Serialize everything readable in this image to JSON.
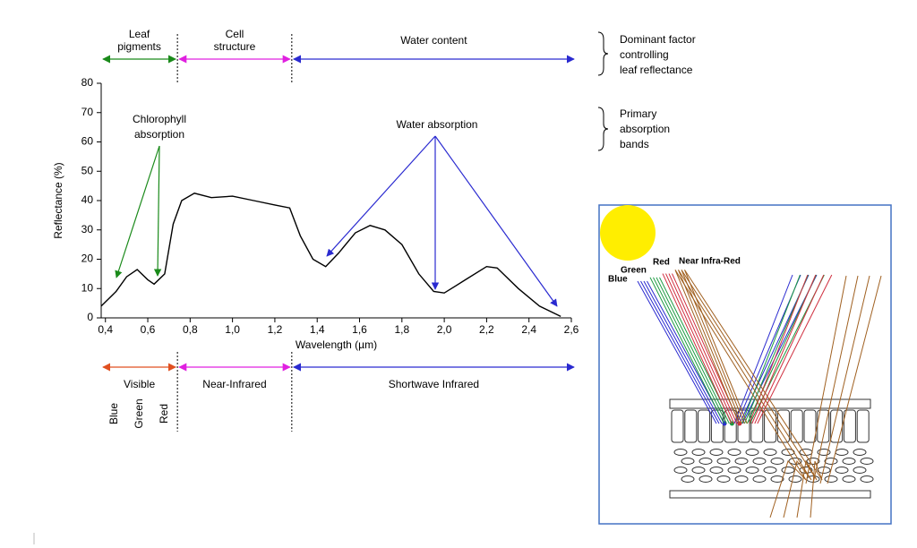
{
  "chart_data": {
    "type": "line",
    "ylabel": "Reflectance (%)",
    "xlabel": "Wavelength (µm)",
    "x": [
      0.38,
      0.45,
      0.5,
      0.55,
      0.6,
      0.63,
      0.68,
      0.72,
      0.76,
      0.82,
      0.9,
      1.0,
      1.1,
      1.2,
      1.27,
      1.32,
      1.38,
      1.44,
      1.5,
      1.58,
      1.65,
      1.72,
      1.8,
      1.88,
      1.95,
      2.0,
      2.1,
      2.2,
      2.25,
      2.35,
      2.45,
      2.55
    ],
    "values": [
      4,
      9,
      14,
      16.5,
      13,
      11.5,
      15,
      32,
      40,
      42.5,
      41,
      41.5,
      40,
      38.5,
      37.5,
      28,
      20,
      17.5,
      22,
      29,
      31.5,
      30,
      25,
      15,
      9,
      8.5,
      13,
      17.5,
      17,
      10,
      4,
      0.5
    ],
    "color": "#000000",
    "xlim": [
      0.38,
      2.6
    ],
    "ylim": [
      0,
      80
    ],
    "xticks": [
      {
        "value": 0.4,
        "label": "0,4"
      },
      {
        "value": 0.6,
        "label": "0,6"
      },
      {
        "value": 0.8,
        "label": "0,8"
      },
      {
        "value": 1.0,
        "label": "1,0"
      },
      {
        "value": 1.2,
        "label": "1,2"
      },
      {
        "value": 1.4,
        "label": "1,4"
      },
      {
        "value": 1.6,
        "label": "1,6"
      },
      {
        "value": 1.8,
        "label": "1,8"
      },
      {
        "value": 2.0,
        "label": "2,0"
      },
      {
        "value": 2.2,
        "label": "2,2"
      },
      {
        "value": 2.4,
        "label": "2,4"
      },
      {
        "value": 2.6,
        "label": "2,6"
      }
    ],
    "yticks": [
      0,
      10,
      20,
      30,
      40,
      50,
      60,
      70,
      80
    ],
    "boundaries": [
      0.74,
      1.28
    ],
    "top_regions": [
      {
        "label": [
          "Leaf",
          "pigments"
        ],
        "color": "#1a8a1a"
      },
      {
        "label": [
          "Cell",
          "structure"
        ],
        "color": "#e020e0"
      },
      {
        "label": [
          "Water content"
        ],
        "color": "#2a2ad0"
      }
    ],
    "bottom_regions": [
      {
        "label": "Visible",
        "color": "#e05020"
      },
      {
        "label": "Near-Infrared",
        "color": "#e020e0"
      },
      {
        "label": "Shortwave Infrared",
        "color": "#2a2ad0"
      }
    ],
    "visible_bands": [
      {
        "label": "Blue",
        "color": "#2a2ad0"
      },
      {
        "label": "Green",
        "color": "#1a8a1a"
      },
      {
        "label": "Red",
        "color": "#d02020"
      }
    ],
    "annotations": [
      {
        "label": [
          "Chlorophyll",
          "absorption"
        ],
        "color": "#1a8a1a"
      },
      {
        "label": [
          "Water absorption"
        ],
        "color": "#2a2ad0"
      }
    ],
    "side_notes": [
      [
        "Dominant factor",
        "controlling",
        "leaf reflectance"
      ],
      [
        "Primary",
        "absorption",
        "bands"
      ]
    ]
  },
  "leaf_diagram": {
    "labels": [
      "Blue",
      "Green",
      "Red",
      "Near Infra-Red"
    ]
  }
}
